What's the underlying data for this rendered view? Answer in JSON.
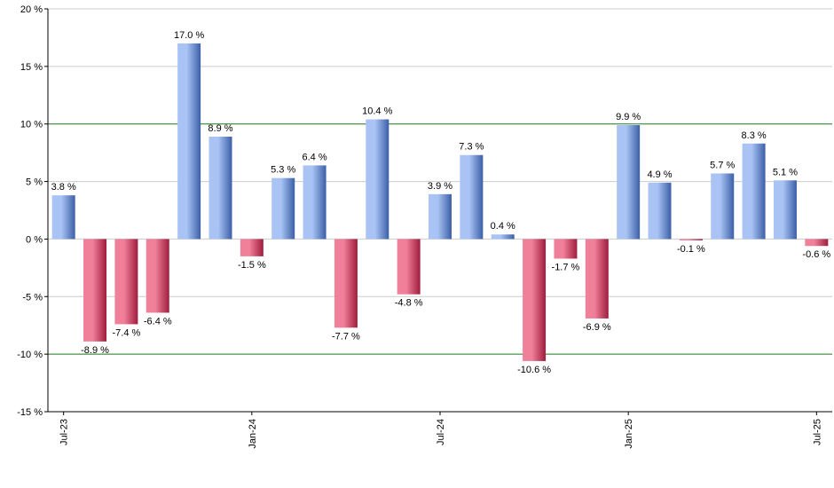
{
  "chart_data": {
    "type": "bar",
    "title": "",
    "xlabel": "",
    "ylabel": "",
    "ylim": [
      -15,
      20
    ],
    "yticks": [
      -15,
      -10,
      -5,
      0,
      5,
      10,
      15,
      20
    ],
    "ytick_labels": [
      "-15 %",
      "-10 %",
      "-5 %",
      "0 %",
      "5 %",
      "10 %",
      "15 %",
      "20 %"
    ],
    "reference_lines": [
      10,
      -10
    ],
    "grid": true,
    "legend": "none",
    "categories": [
      "Jul-23",
      "Aug-23",
      "Sep-23",
      "Oct-23",
      "Nov-23",
      "Dec-23",
      "Jan-24",
      "Feb-24",
      "Mar-24",
      "Apr-24",
      "May-24",
      "Jun-24",
      "Jul-24",
      "Aug-24",
      "Sep-24",
      "Oct-24",
      "Nov-24",
      "Dec-24",
      "Jan-25",
      "Feb-25",
      "Mar-25",
      "Apr-25",
      "May-25",
      "Jun-25",
      "Jul-25"
    ],
    "xtick_labels": [
      "Jul-23",
      "Jan-24",
      "Jul-24",
      "Jan-25",
      "Jul-25"
    ],
    "values": [
      3.8,
      -8.9,
      -7.4,
      -6.4,
      17.0,
      8.9,
      -1.5,
      5.3,
      6.4,
      -7.7,
      10.4,
      -4.8,
      3.9,
      7.3,
      0.4,
      -10.6,
      -1.7,
      -6.9,
      9.9,
      4.9,
      -0.1,
      5.7,
      8.3,
      5.1,
      -0.6
    ],
    "value_labels": [
      "3.8 %",
      "-8.9 %",
      "-7.4 %",
      "-6.4 %",
      "17.0 %",
      "8.9 %",
      "-1.5 %",
      "5.3 %",
      "6.4 %",
      "-7.7 %",
      "10.4 %",
      "-4.8 %",
      "3.9 %",
      "7.3 %",
      "0.4 %",
      "-10.6 %",
      "-1.7 %",
      "-6.9 %",
      "9.9 %",
      "4.9 %",
      "-0.1 %",
      "5.7 %",
      "8.3 %",
      "5.1 %",
      "-0.6 %"
    ],
    "colors": {
      "positive_light": "#a9c4f4",
      "positive_dark": "#3b5fa8",
      "negative_light": "#f07f9a",
      "negative_dark": "#a01c3c",
      "grid": "#cccccc",
      "reference_line": "#1a7a1a",
      "axis": "#000000"
    }
  }
}
